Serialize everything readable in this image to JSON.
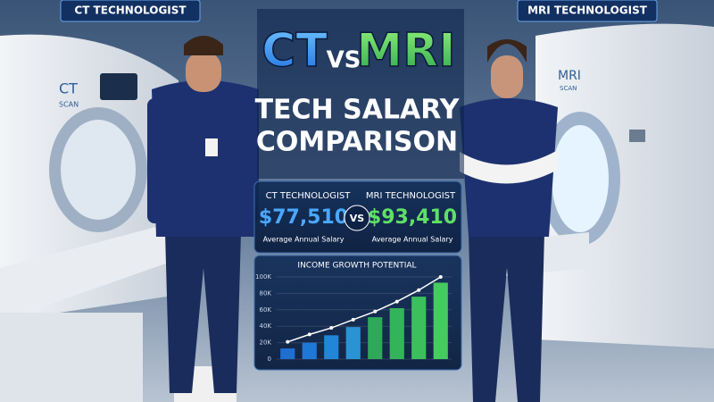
{
  "labels": {
    "left": "CT TECHNOLOGIST",
    "right": "MRI TECHNOLOGIST"
  },
  "machines": {
    "ct": {
      "name": "CT",
      "sub": "SCAN"
    },
    "mri": {
      "name": "MRI",
      "sub": "SCAN"
    }
  },
  "title": {
    "ct": "CT",
    "vs": "VS",
    "mri": "MRI",
    "line1": "TECH SALARY",
    "line2": "COMPARISON"
  },
  "salaries": {
    "ct": {
      "label": "CT TECHNOLOGIST",
      "amount": "$77,510",
      "caption": "Average Annual Salary"
    },
    "vs": "VS",
    "mri": {
      "label": "MRI TECHNOLOGIST",
      "amount": "$93,410",
      "caption": "Average Annual Salary"
    }
  },
  "chart_data": {
    "type": "bar",
    "title": "INCOME GROWTH POTENTIAL",
    "categories": [
      null,
      null,
      null,
      null,
      null,
      null,
      null,
      null
    ],
    "series": [
      {
        "values": [
          13000,
          20000,
          29000,
          39000,
          51000,
          62000,
          76000,
          93000
        ],
        "colors": [
          "#1f6fd1",
          "#1f78d6",
          "#2186d8",
          "#2a93d4",
          "#2fa85a",
          "#34b45a",
          "#3cc05c",
          "#44cc5e"
        ]
      },
      {
        "type": "line",
        "color": "#ffffff",
        "values": [
          21000,
          30000,
          38000,
          48000,
          58000,
          70000,
          84000,
          100000
        ]
      }
    ],
    "ylim": [
      0,
      100000
    ],
    "yticks": [
      0,
      {
        "value": 20000,
        "label": "20K"
      },
      {
        "value": 40000,
        "label": "40K"
      },
      {
        "value": 60000,
        "label": "60K"
      },
      {
        "value": 80000,
        "label": "80K"
      },
      {
        "value": 100000,
        "label": "100K"
      }
    ],
    "grid": true
  }
}
